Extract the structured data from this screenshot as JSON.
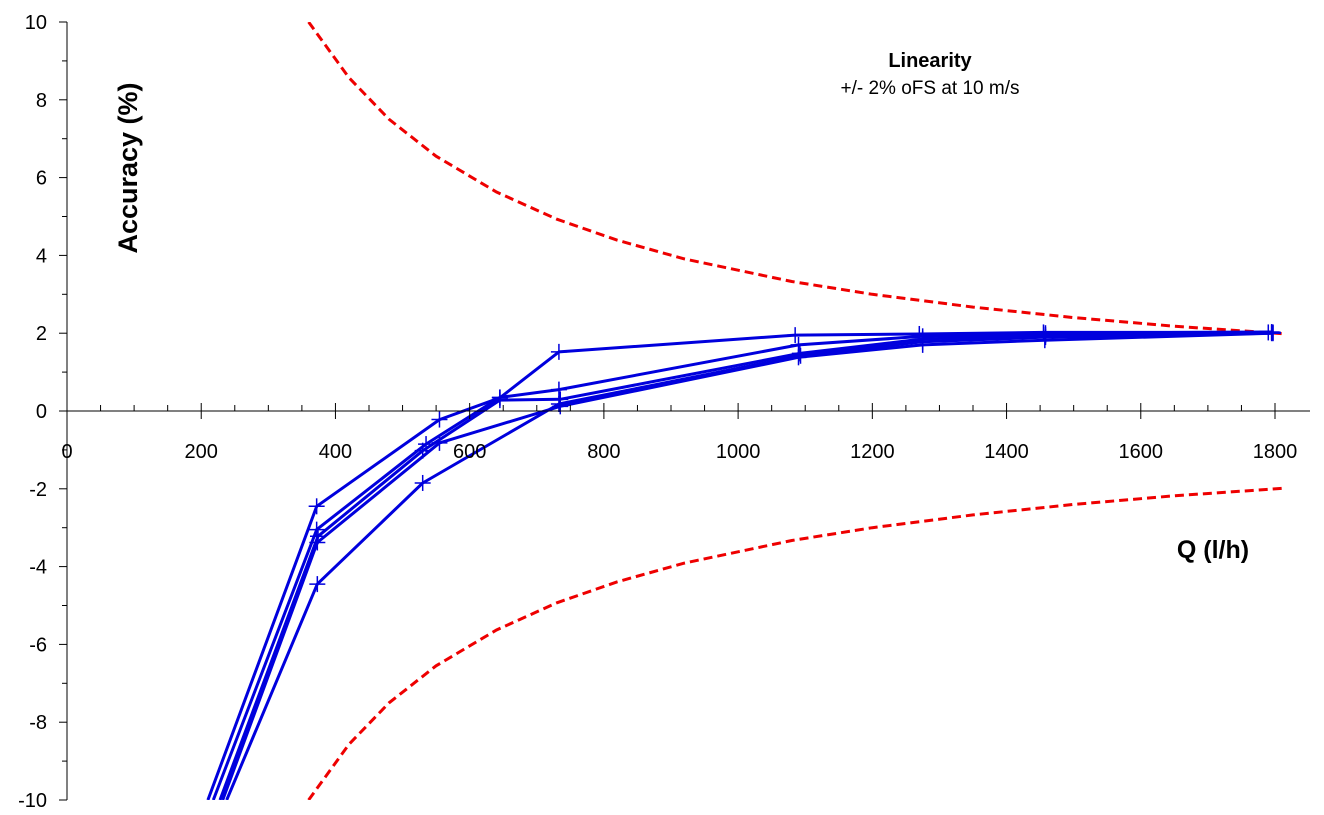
{
  "chart_data": {
    "type": "line",
    "title": "",
    "xlabel": "Q (l/h)",
    "ylabel": "Accuracy (%)",
    "annotation": {
      "title": "Linearity",
      "subtitle": "+/- 2% oFS at 10 m/s"
    },
    "xlim": [
      0,
      1800
    ],
    "ylim": [
      -10,
      10
    ],
    "x_ticks": [
      0,
      200,
      400,
      600,
      800,
      1000,
      1200,
      1400,
      1600,
      1800
    ],
    "y_ticks": [
      -10,
      -8,
      -6,
      -4,
      -2,
      0,
      2,
      4,
      6,
      8,
      10
    ],
    "x_tick_labels": [
      "0",
      "200",
      "400",
      "600",
      "800",
      "1000",
      "1200",
      "1400",
      "1600",
      "1800"
    ],
    "y_tick_labels": [
      "-10",
      "-8",
      "-6",
      "-4",
      "-2",
      "0",
      "2",
      "4",
      "6",
      "8",
      "10"
    ],
    "grid": false,
    "legend": "none",
    "colors": {
      "measurements": "#0000dd",
      "limits": "#ee0000"
    },
    "limit_curves": [
      {
        "style": "dashed",
        "x": [
          360,
          420,
          480,
          550,
          640,
          730,
          820,
          920,
          1080,
          1200,
          1350,
          1500,
          1650,
          1810
        ],
        "y": [
          10,
          8.57,
          7.5,
          6.55,
          5.63,
          4.93,
          4.39,
          3.91,
          3.33,
          3.0,
          2.67,
          2.4,
          2.18,
          1.99
        ]
      },
      {
        "style": "dashed",
        "x": [
          360,
          420,
          480,
          550,
          640,
          730,
          820,
          920,
          1080,
          1200,
          1350,
          1500,
          1650,
          1810
        ],
        "y": [
          -10,
          -8.57,
          -7.5,
          -6.55,
          -5.63,
          -4.93,
          -4.39,
          -3.91,
          -3.33,
          -3.0,
          -2.67,
          -2.4,
          -2.18,
          -1.99
        ]
      }
    ],
    "series": [
      {
        "x": [
          210,
          372,
          555,
          645,
          733,
          1085,
          1270,
          1455,
          1790
        ],
        "y": [
          -10,
          -2.45,
          -0.22,
          0.34,
          1.52,
          1.95,
          1.98,
          2.02,
          2.02
        ]
      },
      {
        "x": [
          218,
          372,
          535,
          645,
          733,
          1090,
          1275,
          1458,
          1795
        ],
        "y": [
          -10,
          -3.05,
          -0.85,
          0.35,
          0.55,
          1.7,
          1.92,
          2.0,
          2.03
        ]
      },
      {
        "x": [
          228,
          374,
          530,
          645,
          735,
          1092,
          1275,
          1458,
          1797
        ],
        "y": [
          -10,
          -3.22,
          -1.02,
          0.28,
          0.3,
          1.48,
          1.85,
          1.95,
          2.02
        ]
      },
      {
        "x": [
          232,
          373,
          555,
          735,
          1090,
          1275,
          1457,
          1797
        ],
        "y": [
          -10,
          -3.38,
          -0.82,
          0.12,
          1.38,
          1.7,
          1.82,
          2.0
        ]
      },
      {
        "x": [
          238,
          373,
          530,
          733,
          1093,
          1275,
          1458,
          1795
        ],
        "y": [
          -10,
          -4.45,
          -1.85,
          0.18,
          1.42,
          1.78,
          1.9,
          2.0
        ]
      }
    ]
  }
}
